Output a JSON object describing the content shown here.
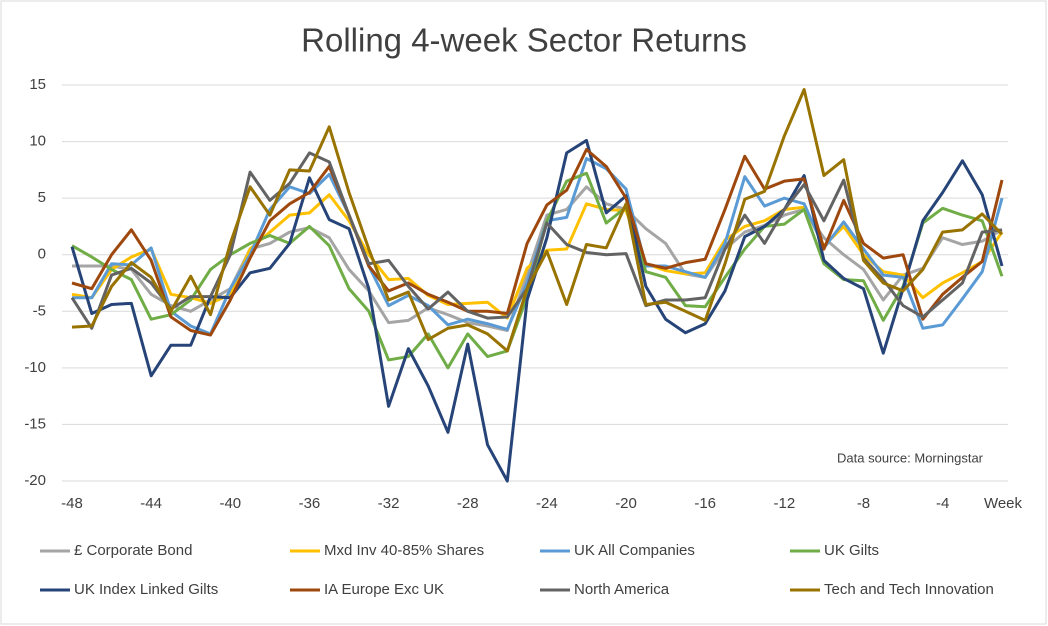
{
  "chart_data": {
    "type": "line",
    "title": "Rolling 4-week Sector Returns",
    "x_label": "Week",
    "annotation": "Data source: Morningstar",
    "x": [
      -48,
      -47,
      -46,
      -45,
      -44,
      -43,
      -42,
      -41,
      -40,
      -39,
      -38,
      -37,
      -36,
      -35,
      -34,
      -33,
      -32,
      -31,
      -30,
      -29,
      -28,
      -27,
      -26,
      -25,
      -24,
      -23,
      -22,
      -21,
      -20,
      -19,
      -18,
      -17,
      -16,
      -15,
      -14,
      -13,
      -12,
      -11,
      -10,
      -9,
      -8,
      -7,
      -6,
      -5,
      -4,
      -3,
      -2,
      -1
    ],
    "xlim": [
      -48,
      -1
    ],
    "xticks": [
      -48,
      -44,
      -40,
      -36,
      -32,
      -28,
      -24,
      -20,
      -16,
      -12,
      -8,
      -4
    ],
    "ylim": [
      -20,
      15
    ],
    "yticks": [
      -20,
      -15,
      -10,
      -5,
      0,
      5,
      10,
      15
    ],
    "grid": true,
    "legend": "bottom",
    "series": [
      {
        "name": "£ Corporate Bond",
        "color": "#a5a5a5",
        "values": [
          -1,
          -1,
          -1,
          -1.3,
          -3.5,
          -4.5,
          -5,
          -4,
          -3,
          0.5,
          1,
          2,
          2.4,
          1.5,
          -1.3,
          -3.2,
          -6,
          -5.8,
          -4.7,
          -5.3,
          -6,
          -6.3,
          -6.7,
          -1.8,
          3.5,
          4,
          6,
          4.5,
          4,
          2.3,
          1,
          -1.7,
          -2,
          0.5,
          2,
          2.6,
          3.5,
          4,
          1.5,
          0,
          -1.3,
          -4,
          -1.8,
          -1.2,
          1.5,
          0.9,
          1.2,
          2.2
        ]
      },
      {
        "name": "Mxd Inv 40-85% Shares",
        "color": "#ffc000",
        "values": [
          -3.5,
          -3.8,
          -1.3,
          -0.2,
          0.5,
          -3.5,
          -3.8,
          -4.3,
          -3.5,
          0.5,
          2,
          3.5,
          3.7,
          5.3,
          3,
          0,
          -2.2,
          -2.1,
          -3.6,
          -4.4,
          -4.3,
          -4.2,
          -5.6,
          -1.2,
          0.4,
          0.5,
          4.5,
          4,
          3.9,
          -0.8,
          -1.4,
          -1.7,
          -1.6,
          1.3,
          2.5,
          3,
          4,
          4.2,
          0.8,
          2.5,
          0,
          -1.5,
          -1.8,
          -3.8,
          -2.5,
          -1.6,
          -0.6,
          2
        ]
      },
      {
        "name": "UK All Companies",
        "color": "#5b9bd5",
        "values": [
          -3.8,
          -3.8,
          -0.8,
          -0.9,
          0.6,
          -5,
          -6.3,
          -7,
          -3,
          0,
          4,
          6,
          5.4,
          7.1,
          3.5,
          -1,
          -4.5,
          -3.6,
          -4.5,
          -6.2,
          -5.7,
          -6.1,
          -6.6,
          -2.5,
          3,
          3.3,
          8.5,
          7.6,
          5.8,
          -1,
          -1,
          -1.5,
          -2,
          1,
          6.9,
          4.3,
          5,
          4.5,
          0.6,
          2.9,
          0.5,
          -1.8,
          -2,
          -6.5,
          -6.2,
          -3.9,
          -1.5,
          5
        ]
      },
      {
        "name": "UK Gilts",
        "color": "#70ad47",
        "values": [
          0.8,
          -0.2,
          -1.3,
          -2.2,
          -5.7,
          -5.3,
          -4,
          -1.3,
          0,
          1,
          1.7,
          1,
          2.5,
          0.8,
          -3,
          -5,
          -9.3,
          -9,
          -7,
          -10,
          -7,
          -9,
          -8.5,
          -3.7,
          3,
          6.5,
          7.2,
          2.8,
          4.2,
          -1.5,
          -2,
          -4.5,
          -4.6,
          -2,
          0.5,
          2.5,
          2.7,
          4,
          -0.8,
          -2.2,
          -2.3,
          -5.8,
          -2.8,
          2.8,
          4.1,
          3.5,
          3,
          -1.9
        ]
      },
      {
        "name": "UK Index Linked Gilts",
        "color": "#264478",
        "values": [
          0.7,
          -5.2,
          -4.4,
          -4.3,
          -10.7,
          -8,
          -8,
          -3.7,
          -3.8,
          -1.6,
          -1.2,
          1,
          6.8,
          3.1,
          2.3,
          -3,
          -13.4,
          -8.3,
          -11.6,
          -15.7,
          -7.9,
          -16.8,
          -20,
          -4,
          1.5,
          9,
          10.1,
          3.7,
          5.2,
          -2.8,
          -5.7,
          -6.9,
          -6.1,
          -3.2,
          1.6,
          2.5,
          4,
          7,
          -0.5,
          -2.1,
          -3,
          -8.7,
          -3,
          3,
          5.5,
          8.3,
          5.3,
          -1
        ]
      },
      {
        "name": "IA Europe Exc UK",
        "color": "#9e480e",
        "values": [
          -2.5,
          -3,
          0,
          2.2,
          -0.5,
          -5.5,
          -6.7,
          -7.1,
          -4,
          -0.3,
          3,
          4.5,
          5.5,
          7.8,
          3.5,
          -1,
          -3.2,
          -2.5,
          -3.5,
          -4.2,
          -5,
          -5,
          -5.2,
          1,
          4.4,
          5.7,
          9.3,
          7.8,
          5,
          -0.8,
          -1.2,
          -0.7,
          -0.4,
          4,
          8.7,
          5.8,
          6.5,
          6.7,
          0.5,
          4.8,
          1,
          -0.3,
          0,
          -5.7,
          -3.5,
          -2,
          -0.6,
          6.6
        ]
      },
      {
        "name": "North America",
        "color": "#636363",
        "values": [
          -3.8,
          -6.5,
          -1.8,
          -1.2,
          -2.5,
          -4.8,
          -3.7,
          -3.7,
          0,
          7.3,
          4.8,
          6.3,
          9,
          8.2,
          3.5,
          -0.8,
          -0.5,
          -2.8,
          -4.8,
          -3.3,
          -5,
          -5.6,
          -5.5,
          -3,
          2.8,
          0.9,
          0.2,
          0,
          0.1,
          -4.5,
          -4,
          -4,
          -3.8,
          0.5,
          3.5,
          1,
          4,
          6.2,
          3,
          6.6,
          -0.3,
          -2.2,
          -4.5,
          -5.5,
          -4,
          -2.5,
          2,
          2.2
        ]
      },
      {
        "name": "Tech and Tech Innovation",
        "color": "#997300",
        "values": [
          -6.4,
          -6.3,
          -2.8,
          -0.7,
          -2,
          -5,
          -1.9,
          -5.3,
          1,
          6,
          3.5,
          7.5,
          7.4,
          11.3,
          5.5,
          0.5,
          -4,
          -3.3,
          -7.5,
          -6.5,
          -6.2,
          -7,
          -8.5,
          -3,
          0.3,
          -4.4,
          0.9,
          0.6,
          4.5,
          -4.4,
          -4.2,
          -5,
          -5.8,
          -0.8,
          4.9,
          5.6,
          10.5,
          14.6,
          7,
          8.4,
          -0.5,
          -2.5,
          -3.2,
          -1.3,
          2,
          2.2,
          3.6,
          1.8
        ]
      }
    ]
  }
}
